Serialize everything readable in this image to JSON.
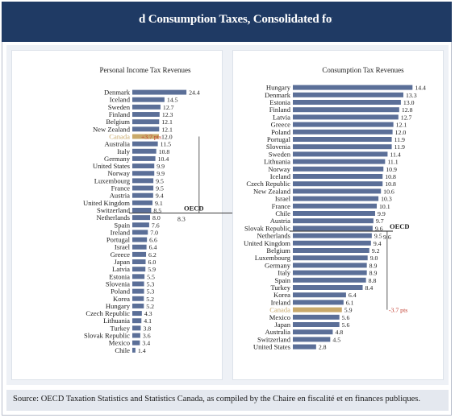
{
  "header": {
    "title": "d Consumption Taxes, Consolidated for A"
  },
  "source": {
    "text": "Source: OECD Taxation Statistics and Statistics Canada, as compiled by the Chaire en fiscalité et en finances publiques."
  },
  "colors": {
    "bar": "#5b6f98",
    "highlight": "#c9a96a",
    "annotation": "#c0392b",
    "header": "#1f3a64"
  },
  "chart_data": [
    {
      "type": "bar",
      "orientation": "horizontal",
      "title": "Personal Income Tax Revenues",
      "categories": [
        "Denmark",
        "Iceland",
        "Sweden",
        "Finland",
        "Belgium",
        "New Zealand",
        "Canada",
        "Australia",
        "Italy",
        "Germany",
        "United States",
        "Norway",
        "Luxembourg",
        "France",
        "Austria",
        "United Kingdom",
        "Switzerland",
        "Netherlands",
        "Spain",
        "Ireland",
        "Portugal",
        "Israel",
        "Greece",
        "Japan",
        "Latvia",
        "Estonia",
        "Slovenia",
        "Poland",
        "Korea",
        "Hungary",
        "Czech Republic",
        "Lithuania",
        "Turkey",
        "Slovak Republic",
        "Mexico",
        "Chile"
      ],
      "values": [
        24.4,
        14.5,
        12.7,
        12.3,
        12.1,
        12.1,
        12.0,
        11.5,
        10.8,
        10.4,
        9.9,
        9.9,
        9.5,
        9.5,
        9.4,
        9.1,
        8.5,
        8.0,
        7.6,
        7.0,
        6.6,
        6.4,
        6.2,
        6.0,
        5.9,
        5.5,
        5.3,
        5.3,
        5.2,
        5.2,
        4.3,
        4.1,
        3.8,
        3.6,
        3.4,
        1.4
      ],
      "value_labels": [
        "24.4",
        "14.5",
        "12.7",
        "12.3",
        "12.1",
        "12.1",
        "12.0",
        "11.5",
        "10.8",
        "10.4",
        "9.9",
        "9.9",
        "9.5",
        "9.5",
        "9.4",
        "9.1",
        "8.5",
        "8.0",
        "7.6",
        "7.0",
        "6.6",
        "6.4",
        "6.2",
        "6.0",
        "5.9",
        "5.5",
        "5.3",
        "5.3",
        "5.2",
        "5.2",
        "4.3",
        "4.1",
        "3.8",
        "3.6",
        "3.4",
        "1.4"
      ],
      "highlight": "Canada",
      "reference": {
        "label": "OECD",
        "value": 8.3,
        "value_label": "8.3"
      },
      "annotation": {
        "text": "+3.7 pts"
      }
    },
    {
      "type": "bar",
      "orientation": "horizontal",
      "title": "Consumption Tax Revenues",
      "categories": [
        "Hungary",
        "Denmark",
        "Estonia",
        "Finland",
        "Latvia",
        "Greece",
        "Poland",
        "Portugal",
        "Slovenia",
        "Sweden",
        "Lithuania",
        "Norway",
        "Iceland",
        "Czech Republic",
        "New Zealand",
        "Israel",
        "France",
        "Chile",
        "Austria",
        "Slovak Republic",
        "Netherlands",
        "United Kingdom",
        "Belgium",
        "Luxembourg",
        "Germany",
        "Italy",
        "Spain",
        "Turkey",
        "Korea",
        "Ireland",
        "Canada",
        "Mexico",
        "Japan",
        "Australia",
        "Switzerland",
        "United States"
      ],
      "values": [
        14.4,
        13.3,
        13.0,
        12.8,
        12.7,
        12.1,
        12.0,
        11.9,
        11.9,
        11.4,
        11.1,
        10.9,
        10.8,
        10.8,
        10.6,
        10.3,
        10.1,
        9.9,
        9.7,
        9.6,
        9.5,
        9.4,
        9.2,
        9.0,
        8.9,
        8.9,
        8.8,
        8.4,
        6.4,
        6.1,
        5.9,
        5.6,
        5.6,
        4.8,
        4.5,
        2.8
      ],
      "value_labels": [
        "14.4",
        "13.3",
        "13.0",
        "12.8",
        "12.7",
        "12.1",
        "12.0",
        "11.9",
        "11.9",
        "11.4",
        "11.1",
        "10.9",
        "10.8",
        "10.8",
        "10.6",
        "10.3",
        "10.1",
        "9.9",
        "9.7",
        "9.6",
        "9.5",
        "9.4",
        "9.2",
        "9.0",
        "8.9",
        "8.9",
        "8.8",
        "8.4",
        "6.4",
        "6.1",
        "5.9",
        "5.6",
        "5.6",
        "4.8",
        "4.5",
        "2.8"
      ],
      "highlight": "Canada",
      "reference": {
        "label": "OECD",
        "value": 9.6,
        "value_label": "9.6"
      },
      "annotation": {
        "text": "-3.7 pts"
      }
    }
  ]
}
